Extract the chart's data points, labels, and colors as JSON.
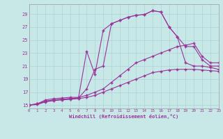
{
  "xlabel": "Windchill (Refroidissement éolien,°C)",
  "bg_color": "#c8e8e8",
  "grid_color": "#b0d8d8",
  "line_color": "#993399",
  "xlim": [
    0,
    23
  ],
  "ylim": [
    14.5,
    30.5
  ],
  "yticks": [
    15,
    17,
    19,
    21,
    23,
    25,
    27,
    29
  ],
  "xticks": [
    0,
    1,
    2,
    3,
    4,
    5,
    6,
    7,
    8,
    9,
    10,
    11,
    12,
    13,
    14,
    15,
    16,
    17,
    18,
    19,
    20,
    21,
    22,
    23
  ],
  "lines": [
    {
      "x": [
        0,
        1,
        2,
        3,
        4,
        5,
        6,
        7,
        8,
        9,
        10,
        11,
        12,
        13,
        14,
        15,
        16,
        17,
        18,
        19,
        20,
        21,
        22,
        23
      ],
      "y": [
        15,
        15.2,
        15.6,
        15.8,
        15.9,
        16.0,
        16.1,
        23.3,
        19.7,
        26.5,
        27.5,
        28.0,
        28.5,
        28.8,
        28.9,
        29.5,
        29.3,
        27.0,
        25.5,
        21.5,
        21.0,
        21.0,
        20.8,
        20.5
      ]
    },
    {
      "x": [
        0,
        1,
        2,
        3,
        4,
        5,
        6,
        7,
        8,
        9,
        10,
        11,
        12,
        13,
        14,
        15,
        16,
        17,
        18,
        19,
        20,
        21,
        22,
        23
      ],
      "y": [
        15,
        15.2,
        15.6,
        15.8,
        15.9,
        16.0,
        16.1,
        17.5,
        20.5,
        21.0,
        27.5,
        28.0,
        28.5,
        28.8,
        28.9,
        29.5,
        29.3,
        27.0,
        25.5,
        24.0,
        24.0,
        22.0,
        21.0,
        21.0
      ]
    },
    {
      "x": [
        0,
        1,
        2,
        3,
        4,
        5,
        6,
        7,
        8,
        9,
        10,
        11,
        12,
        13,
        14,
        15,
        16,
        17,
        18,
        19,
        20,
        21,
        22,
        23
      ],
      "y": [
        15,
        15.2,
        15.8,
        16.0,
        16.1,
        16.2,
        16.2,
        16.5,
        17.0,
        17.5,
        18.5,
        19.5,
        20.5,
        21.5,
        22.0,
        22.5,
        23.0,
        23.5,
        24.0,
        24.2,
        24.5,
        22.5,
        21.5,
        21.5
      ]
    },
    {
      "x": [
        0,
        1,
        2,
        3,
        4,
        5,
        6,
        7,
        8,
        9,
        10,
        11,
        12,
        13,
        14,
        15,
        16,
        17,
        18,
        19,
        20,
        21,
        22,
        23
      ],
      "y": [
        15,
        15.1,
        15.5,
        15.7,
        15.8,
        15.9,
        16.0,
        16.2,
        16.5,
        17.0,
        17.5,
        18.0,
        18.5,
        19.0,
        19.5,
        20.0,
        20.2,
        20.4,
        20.5,
        20.5,
        20.5,
        20.4,
        20.3,
        20.2
      ]
    }
  ]
}
